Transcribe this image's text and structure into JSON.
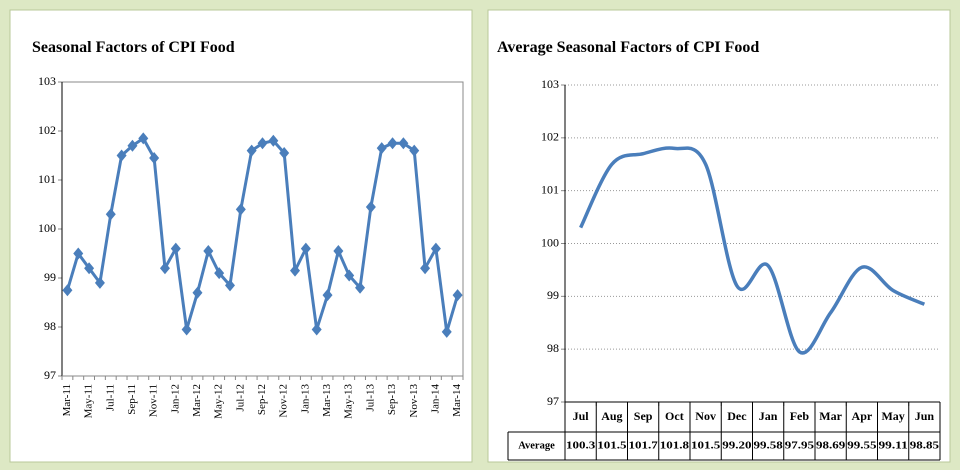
{
  "chart_data": [
    {
      "type": "line",
      "title": "Seasonal Factors of CPI Food",
      "markers": "diamond",
      "grid": false,
      "smooth": false,
      "categories": [
        "Mar-11",
        null,
        "May-11",
        null,
        "Jul-11",
        null,
        "Sep-11",
        null,
        "Nov-11",
        null,
        "Jan-12",
        null,
        "Mar-12",
        null,
        "May-12",
        null,
        "Jul-12",
        null,
        "Sep-12",
        null,
        "Nov-12",
        null,
        "Jan-13",
        null,
        "Mar-13",
        null,
        "May-13",
        null,
        "Jul-13",
        null,
        "Sep-13",
        null,
        "Nov-13",
        null,
        "Jan-14",
        null,
        "Mar-14"
      ],
      "series": [
        {
          "color": "#4a7ebb",
          "values": [
            98.75,
            99.5,
            99.2,
            98.9,
            100.3,
            101.5,
            101.7,
            101.85,
            101.45,
            99.2,
            99.6,
            97.95,
            98.7,
            99.55,
            99.1,
            98.85,
            100.4,
            101.6,
            101.75,
            101.8,
            101.55,
            99.15,
            99.6,
            97.95,
            98.65,
            99.55,
            99.05,
            98.8,
            100.45,
            101.65,
            101.75,
            101.75,
            101.6,
            99.2,
            99.6,
            97.9,
            98.65
          ]
        }
      ],
      "ylim": [
        97,
        103
      ],
      "yticks": [
        97,
        98,
        99,
        100,
        101,
        102,
        103
      ]
    },
    {
      "type": "line",
      "title": "Average Seasonal Factors of CPI Food",
      "markers": "none",
      "grid": true,
      "smooth": true,
      "data_table": true,
      "categories": [
        "Jul",
        "Aug",
        "Sep",
        "Oct",
        "Nov",
        "Dec",
        "Jan",
        "Feb",
        "Mar",
        "Apr",
        "May",
        "Jun"
      ],
      "series": [
        {
          "name": "Average",
          "color": "#4a7ebb",
          "values": [
            100.3,
            101.5,
            101.7,
            101.8,
            101.5,
            99.2,
            99.58,
            97.95,
            98.69,
            99.55,
            99.11,
            98.85
          ],
          "value_labels": [
            "100.3",
            "101.5",
            "101.7",
            "101.8",
            "101.5",
            "99.20",
            "99.58",
            "97.95",
            "98.69",
            "99.55",
            "99.11",
            "98.85"
          ]
        }
      ],
      "ylim": [
        97,
        103
      ],
      "yticks": [
        97,
        98,
        99,
        100,
        101,
        102,
        103
      ]
    }
  ]
}
